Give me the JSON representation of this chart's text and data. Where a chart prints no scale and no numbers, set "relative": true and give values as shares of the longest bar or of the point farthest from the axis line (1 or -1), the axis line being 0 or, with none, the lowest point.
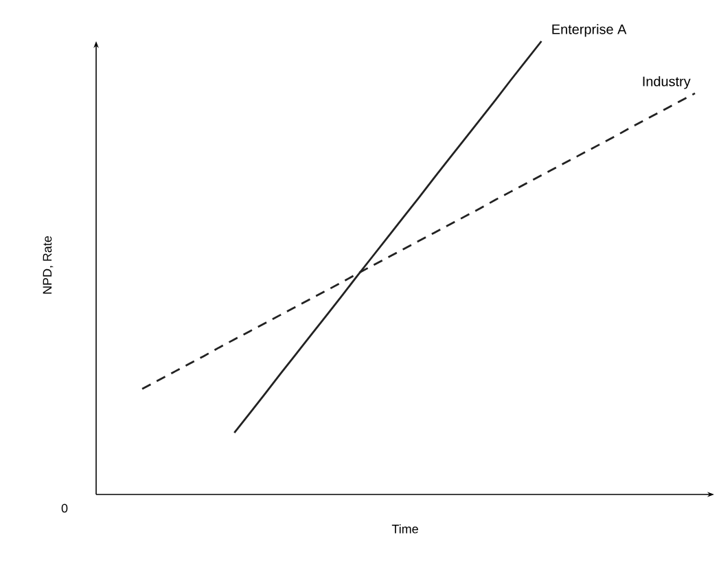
{
  "chart_data": {
    "type": "line",
    "relative": true,
    "xlabel": "Time",
    "ylabel": "NPD, Rate",
    "annotations": [
      "0"
    ],
    "categories": [
      null,
      null,
      null,
      null,
      null,
      null,
      null,
      null,
      null,
      null,
      null,
      null,
      null,
      null,
      null,
      null,
      null,
      null,
      null,
      null,
      null,
      null,
      null,
      null,
      null,
      null,
      null,
      null,
      null,
      null,
      null,
      null,
      null,
      null,
      null,
      null,
      null,
      null,
      null,
      null,
      null
    ],
    "series": [
      {
        "name": "Enterprise A",
        "color": "#222222",
        "line_style": "solid",
        "values": [
          null,
          null,
          null,
          null,
          null,
          null,
          null,
          null,
          null,
          0.136,
          0.179,
          0.222,
          0.266,
          0.309,
          0.352,
          0.395,
          0.438,
          0.482,
          0.525,
          0.568,
          0.611,
          0.654,
          0.698,
          0.741,
          0.784,
          0.827,
          0.87,
          0.914,
          0.957,
          1,
          null,
          null,
          null,
          null,
          null,
          null,
          null,
          null,
          null,
          null,
          null
        ]
      },
      {
        "name": "Industry",
        "color": "#222222",
        "line_style": "dashed",
        "values": [
          null,
          null,
          null,
          0.233,
          0.251,
          0.269,
          0.287,
          0.305,
          0.324,
          0.342,
          0.36,
          0.378,
          0.396,
          0.414,
          0.432,
          0.45,
          0.468,
          0.487,
          0.505,
          0.523,
          0.541,
          0.559,
          0.577,
          0.595,
          0.613,
          0.631,
          0.65,
          0.668,
          0.686,
          0.704,
          0.722,
          0.74,
          0.758,
          0.776,
          0.794,
          0.813,
          0.831,
          0.849,
          0.867,
          0.885,
          null
        ]
      }
    ]
  }
}
